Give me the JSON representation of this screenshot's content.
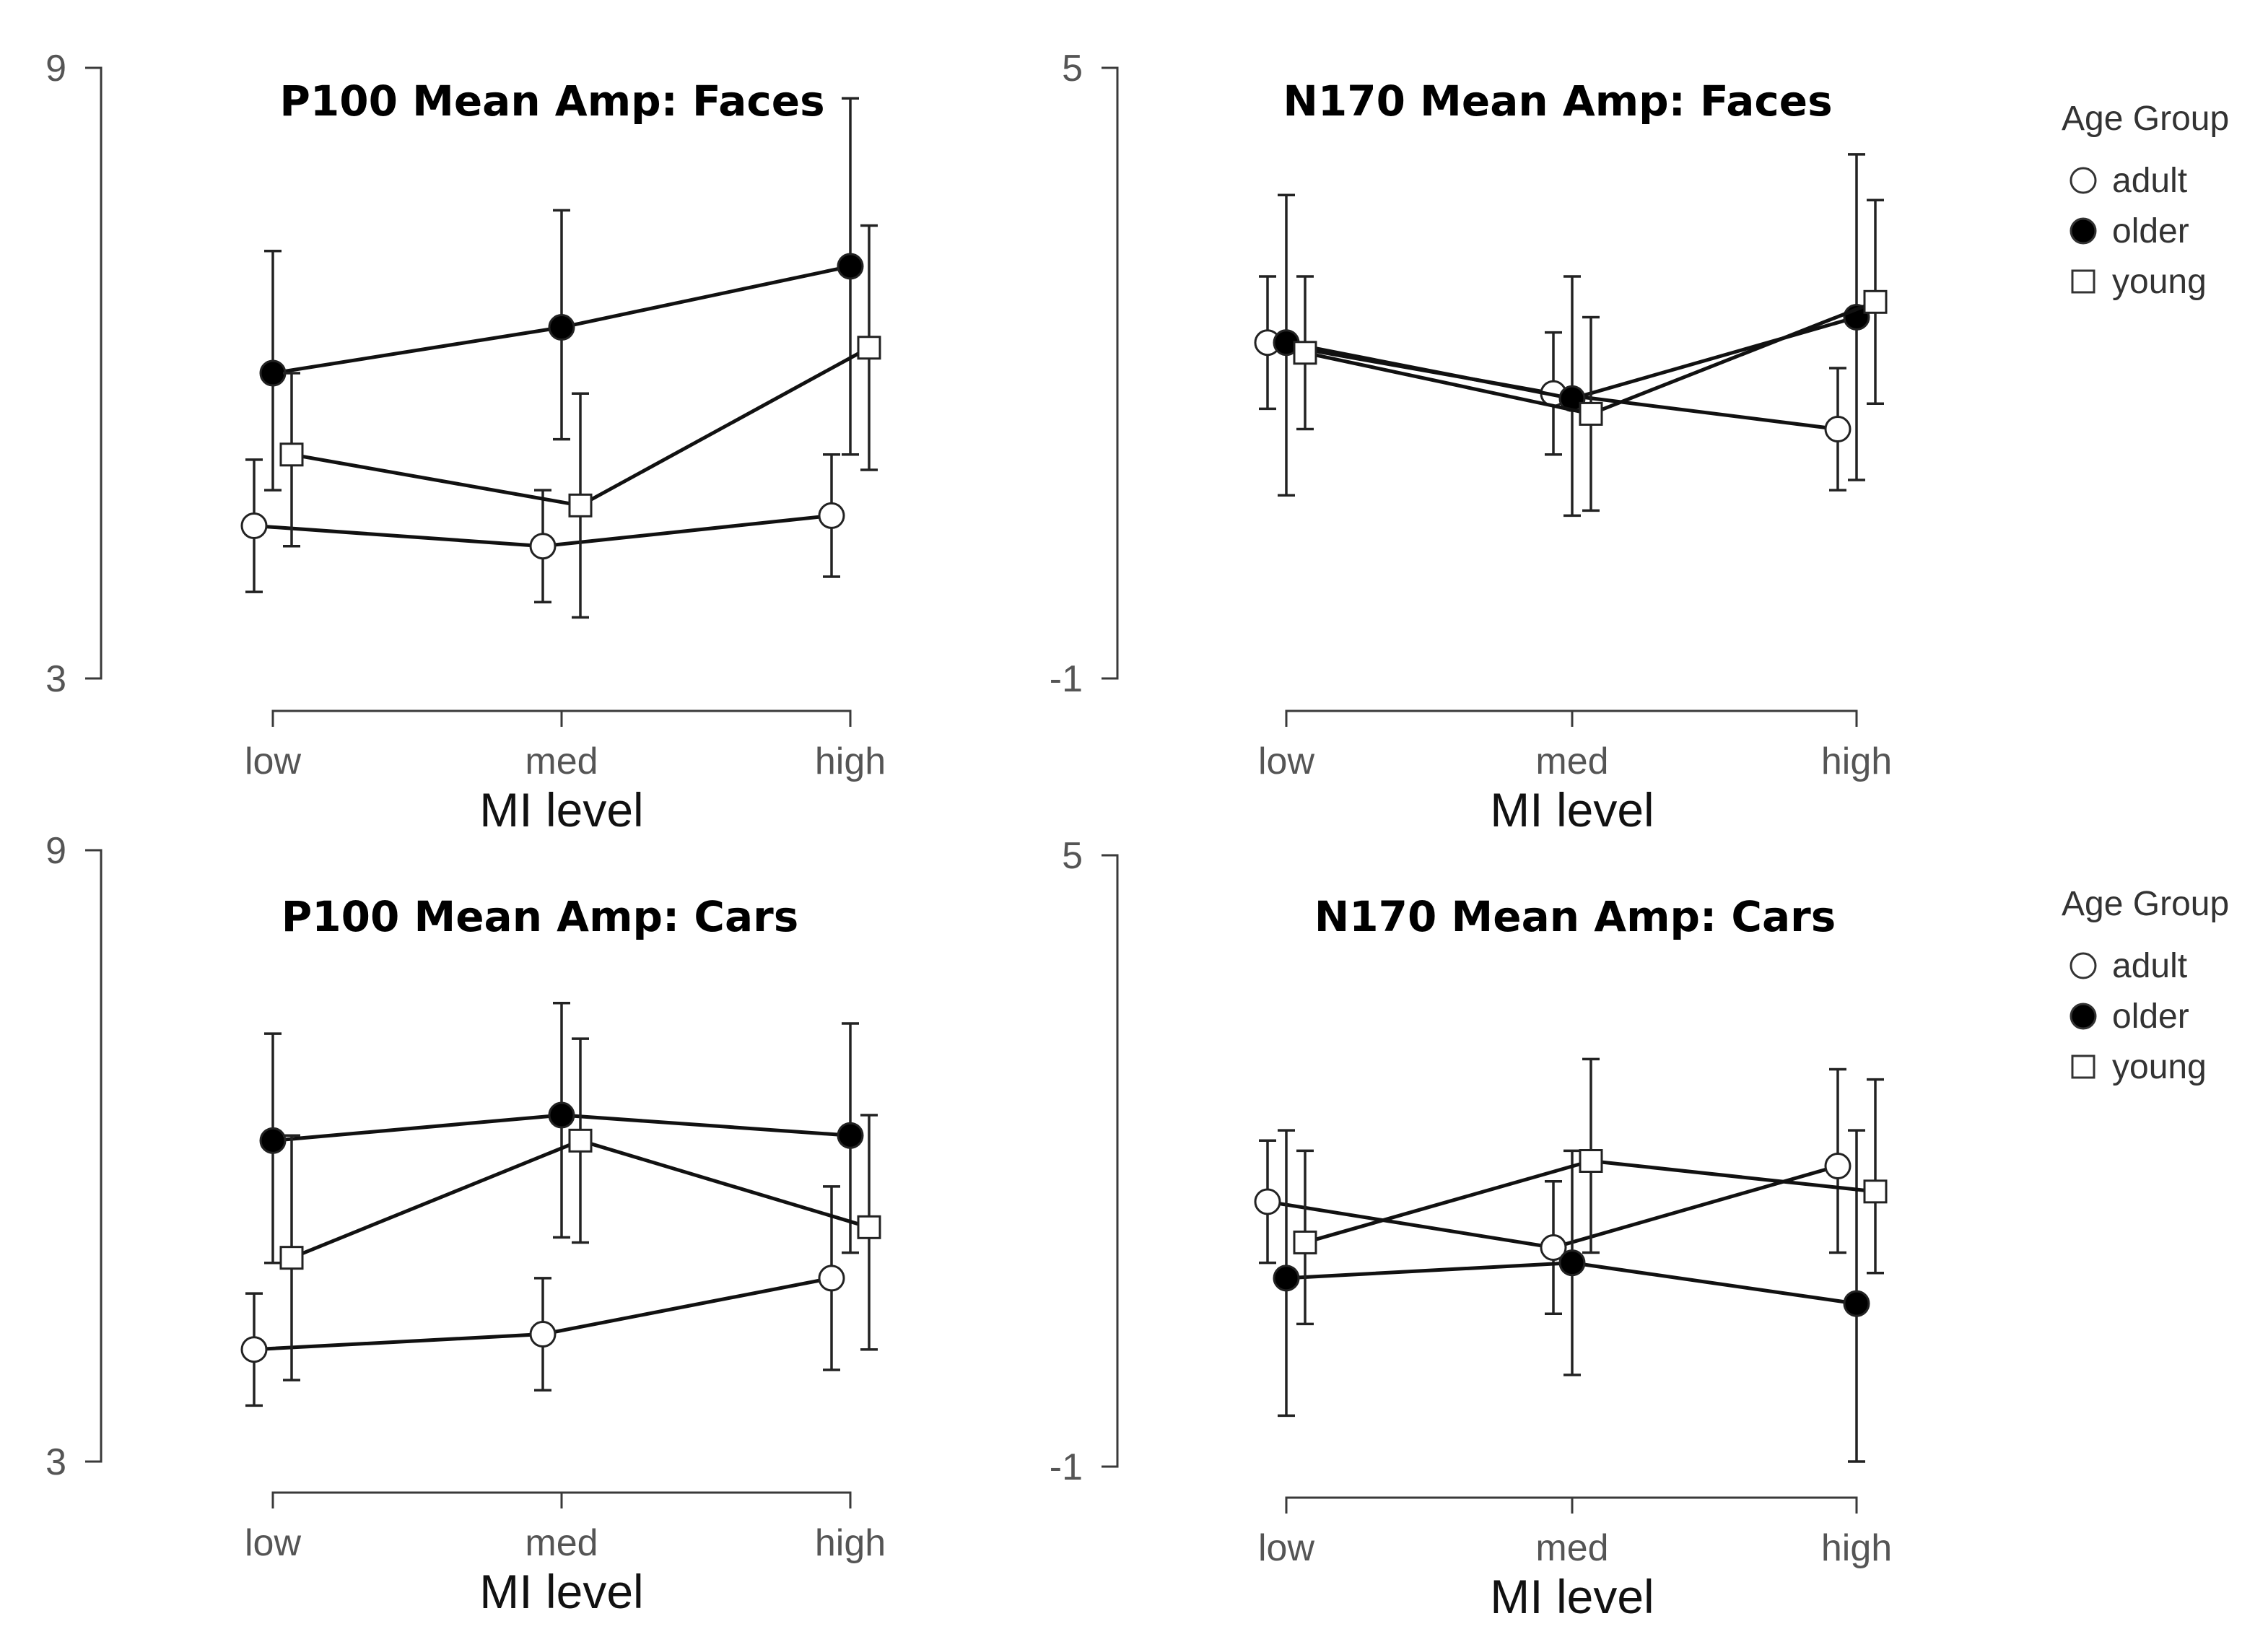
{
  "chart_data": [
    {
      "type": "line",
      "title": "P100 Mean Amp: Faces",
      "xlabel": "MI level",
      "ylabel": "",
      "ylim": [
        3,
        9
      ],
      "yticks": [
        "9",
        "3"
      ],
      "categories": [
        "low",
        "med",
        "high"
      ],
      "legend": null,
      "series": [
        {
          "name": "adult",
          "marker": "open-circle",
          "values": [
            4.5,
            4.3,
            4.6
          ],
          "err_low": [
            3.85,
            3.75,
            4.0
          ],
          "err_high": [
            5.15,
            4.85,
            5.2
          ]
        },
        {
          "name": "older",
          "marker": "filled-circle",
          "values": [
            6.0,
            6.45,
            7.05
          ],
          "err_low": [
            4.85,
            5.35,
            5.2
          ],
          "err_high": [
            7.2,
            7.6,
            8.7
          ]
        },
        {
          "name": "young",
          "marker": "open-square",
          "values": [
            5.2,
            4.7,
            6.25
          ],
          "err_low": [
            4.3,
            3.6,
            5.05
          ],
          "err_high": [
            6.0,
            5.8,
            7.45
          ]
        }
      ]
    },
    {
      "type": "line",
      "title": "N170 Mean Amp: Faces",
      "xlabel": "MI level",
      "ylabel": "",
      "ylim": [
        -1,
        5
      ],
      "yticks": [
        "5",
        "-1"
      ],
      "categories": [
        "low",
        "med",
        "high"
      ],
      "legend": {
        "title": "Age Group",
        "position": "right",
        "entries": [
          "adult",
          "older",
          "young"
        ]
      },
      "series": [
        {
          "name": "adult",
          "marker": "open-circle",
          "values": [
            2.3,
            1.8,
            1.45
          ],
          "err_low": [
            1.65,
            1.2,
            0.85
          ],
          "err_high": [
            2.95,
            2.4,
            2.05
          ]
        },
        {
          "name": "older",
          "marker": "filled-circle",
          "values": [
            2.3,
            1.75,
            2.55
          ],
          "err_low": [
            0.8,
            0.6,
            0.95
          ],
          "err_high": [
            3.75,
            2.95,
            4.15
          ]
        },
        {
          "name": "young",
          "marker": "open-square",
          "values": [
            2.2,
            1.6,
            2.7
          ],
          "err_low": [
            1.45,
            0.65,
            1.7
          ],
          "err_high": [
            2.95,
            2.55,
            3.7
          ]
        }
      ]
    },
    {
      "type": "line",
      "title": "P100 Mean Amp: Cars",
      "xlabel": "MI level",
      "ylabel": "",
      "ylim": [
        3,
        9
      ],
      "yticks": [
        "9",
        "3"
      ],
      "categories": [
        "low",
        "med",
        "high"
      ],
      "legend": null,
      "series": [
        {
          "name": "adult",
          "marker": "open-circle",
          "values": [
            4.1,
            4.25,
            4.8
          ],
          "err_low": [
            3.55,
            3.7,
            3.9
          ],
          "err_high": [
            4.65,
            4.8,
            5.7
          ]
        },
        {
          "name": "older",
          "marker": "filled-circle",
          "values": [
            6.15,
            6.4,
            6.2
          ],
          "err_low": [
            4.95,
            5.2,
            5.05
          ],
          "err_high": [
            7.2,
            7.5,
            7.3
          ]
        },
        {
          "name": "young",
          "marker": "open-square",
          "values": [
            5.0,
            6.15,
            5.3
          ],
          "err_low": [
            3.8,
            5.15,
            4.1
          ],
          "err_high": [
            6.2,
            7.15,
            6.4
          ]
        }
      ]
    },
    {
      "type": "line",
      "title": "N170 Mean Amp: Cars",
      "xlabel": "MI level",
      "ylabel": "",
      "ylim": [
        -1,
        5
      ],
      "yticks": [
        "5",
        "-1"
      ],
      "categories": [
        "low",
        "med",
        "high"
      ],
      "legend": {
        "title": "Age Group",
        "position": "right",
        "entries": [
          "adult",
          "older",
          "young"
        ]
      },
      "series": [
        {
          "name": "adult",
          "marker": "open-circle",
          "values": [
            1.6,
            1.15,
            1.95
          ],
          "err_low": [
            1.0,
            0.5,
            1.1
          ],
          "err_high": [
            2.2,
            1.8,
            2.9
          ]
        },
        {
          "name": "older",
          "marker": "filled-circle",
          "values": [
            0.85,
            1.0,
            0.6
          ],
          "err_low": [
            -0.5,
            -0.1,
            -0.95
          ],
          "err_high": [
            2.3,
            2.1,
            2.3
          ]
        },
        {
          "name": "young",
          "marker": "open-square",
          "values": [
            1.2,
            2.0,
            1.7
          ],
          "err_low": [
            0.4,
            1.1,
            0.9
          ],
          "err_high": [
            2.1,
            3.0,
            2.8
          ]
        }
      ]
    }
  ]
}
